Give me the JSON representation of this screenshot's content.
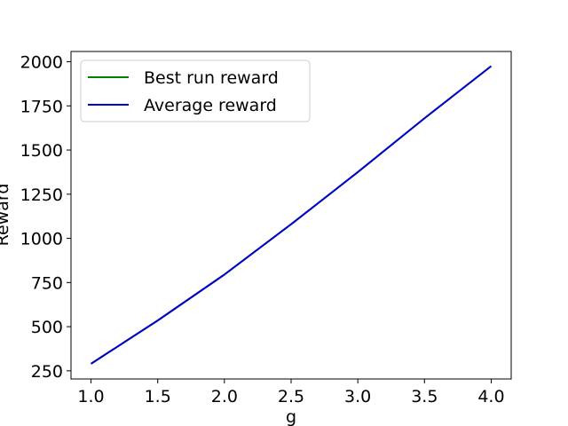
{
  "chart_data": {
    "type": "line",
    "title": "",
    "xlabel": "g",
    "ylabel": "Reward",
    "xlim": [
      0.85,
      4.15
    ],
    "ylim": [
      204,
      2058
    ],
    "xticks": [
      1.0,
      1.5,
      2.0,
      2.5,
      3.0,
      3.5,
      4.0
    ],
    "xtick_labels": [
      "1.0",
      "1.5",
      "2.0",
      "2.5",
      "3.0",
      "3.5",
      "4.0"
    ],
    "yticks": [
      250,
      500,
      750,
      1000,
      1250,
      1500,
      1750,
      2000
    ],
    "ytick_labels": [
      "250",
      "500",
      "750",
      "1000",
      "1250",
      "1500",
      "1750",
      "2000"
    ],
    "grid": false,
    "legend_position": "top-left",
    "x": [
      1.0,
      1.5,
      2.0,
      2.5,
      3.0,
      3.5,
      4.0
    ],
    "series": [
      {
        "name": "Best run reward",
        "color": "#008000",
        "values": [
          290,
          535,
          795,
          1080,
          1375,
          1680,
          1975
        ]
      },
      {
        "name": "Average reward",
        "color": "#0000cc",
        "values": [
          290,
          535,
          795,
          1080,
          1375,
          1680,
          1975
        ]
      }
    ]
  }
}
